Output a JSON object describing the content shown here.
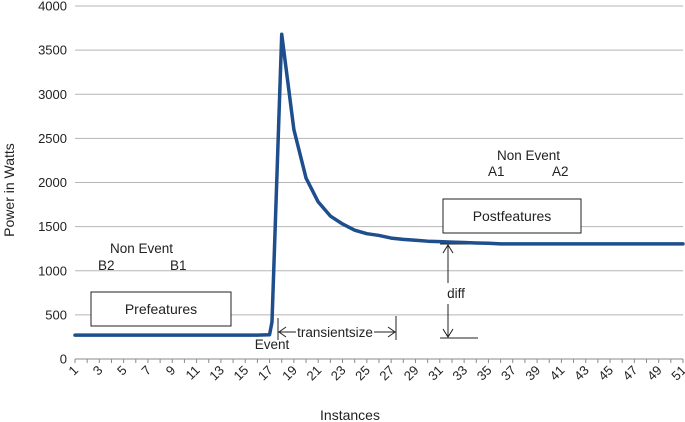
{
  "chart_data": {
    "type": "line",
    "xlabel": "Instances",
    "ylabel": "Power in Watts",
    "ylim": [
      0,
      4000
    ],
    "yticks": [
      0,
      500,
      1000,
      1500,
      2000,
      2500,
      3000,
      3500,
      4000
    ],
    "xlim": [
      1,
      51
    ],
    "xticks": [
      1,
      3,
      5,
      7,
      9,
      11,
      13,
      15,
      17,
      19,
      21,
      23,
      25,
      27,
      29,
      31,
      33,
      35,
      37,
      39,
      41,
      43,
      45,
      47,
      49,
      51
    ],
    "grid": "horizontal",
    "line_color": "#1f4e8c",
    "series": [
      {
        "x": [
          1,
          2,
          3,
          4,
          5,
          6,
          7,
          8,
          9,
          10,
          11,
          12,
          13,
          14,
          15,
          16,
          17,
          17.2,
          18,
          19,
          20,
          21,
          22,
          23,
          24,
          25,
          26,
          27,
          28,
          29,
          30,
          31,
          32,
          33,
          34,
          35,
          36,
          37,
          38,
          39,
          40,
          41,
          42,
          43,
          44,
          45,
          46,
          47,
          48,
          49,
          50,
          51
        ],
        "values": [
          270,
          270,
          270,
          270,
          270,
          270,
          270,
          270,
          270,
          270,
          270,
          270,
          270,
          270,
          270,
          270,
          275,
          420,
          3680,
          2600,
          2050,
          1780,
          1620,
          1530,
          1460,
          1420,
          1400,
          1370,
          1355,
          1345,
          1335,
          1330,
          1325,
          1320,
          1315,
          1312,
          1305,
          1305,
          1305,
          1305,
          1305,
          1305,
          1305,
          1305,
          1305,
          1305,
          1305,
          1305,
          1305,
          1305,
          1305,
          1305
        ]
      }
    ],
    "annotations": {
      "nonevent_before": "Non Event",
      "b2": "B2",
      "b1": "B1",
      "prefeatures": "Prefeatures",
      "event": "Event",
      "transientsize": "transientsize",
      "diff": "diff",
      "nonevent_after": "Non Event",
      "a1": "A1",
      "a2": "A2",
      "postfeatures": "Postfeatures"
    }
  }
}
